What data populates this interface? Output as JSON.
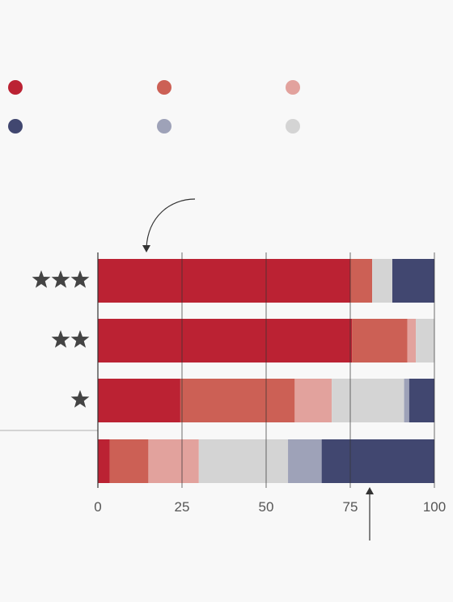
{
  "chart_data": {
    "type": "bar",
    "orientation": "horizontal",
    "stacked": true,
    "categories": [
      "★★★",
      "★★",
      "★",
      ""
    ],
    "category_star_counts": [
      3,
      2,
      1,
      0
    ],
    "xlim": [
      0,
      100
    ],
    "x_ticks": [
      "0",
      "25",
      "50",
      "75",
      "100"
    ],
    "grid": "vertical",
    "legend_position": "top",
    "segments": [
      [
        75,
        6.5,
        6,
        12.5
      ],
      [
        75.5,
        16.5,
        2.5,
        5.5
      ],
      [
        24.5,
        34,
        11,
        21.5,
        1.5,
        7.5
      ],
      [
        3.5,
        11.5,
        15,
        26.5,
        10,
        33.5
      ]
    ],
    "segment_color_index": [
      [
        0,
        1,
        5,
        3
      ],
      [
        0,
        1,
        2,
        5
      ],
      [
        0,
        1,
        2,
        5,
        4,
        3
      ],
      [
        0,
        1,
        2,
        5,
        4,
        3
      ]
    ]
  },
  "colors": {
    "palette": [
      "#bb2233",
      "#cc6055",
      "#e2a29d",
      "#414770",
      "#9ea2b8",
      "#d4d4d4"
    ],
    "axis": "#333333",
    "tick_text": "#555555",
    "star": "#444444",
    "arrow": "#333333"
  },
  "legend": {
    "items": [
      {
        "color": "#bb2233"
      },
      {
        "color": "#cc6055"
      },
      {
        "color": "#e2a29d"
      },
      {
        "color": "#414770"
      },
      {
        "color": "#9ea2b8"
      },
      {
        "color": "#d4d4d4"
      }
    ]
  }
}
